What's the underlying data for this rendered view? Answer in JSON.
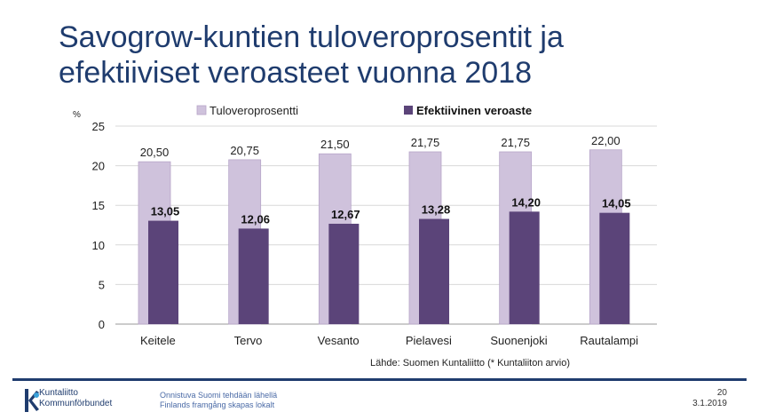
{
  "slide": {
    "title_line1": "Savogrow-kuntien tuloveroprosentit ja",
    "title_line2": "efektiiviset veroasteet vuonna 2018",
    "source": "Lähde: Suomen Kuntaliitto (* Kuntaliiton arvio)",
    "footer": {
      "logo_line1": "Kuntaliitto",
      "logo_line2": "Kommunförbundet",
      "slogan_line1": "Onnistuva Suomi tehdään lähellä",
      "slogan_line2": "Finlands framgång skapas lokalt",
      "page_number": "20",
      "date": "3.1.2019"
    },
    "colors": {
      "title": "#1f3c6e",
      "footer_line": "#1f3c6e"
    }
  },
  "chart_data": {
    "type": "bar",
    "categories": [
      "Keitele",
      "Tervo",
      "Vesanto",
      "Pielavesi",
      "Suonenjoki",
      "Rautalampi"
    ],
    "series": [
      {
        "name": "Tuloveroprosentti",
        "values": [
          20.5,
          20.75,
          21.5,
          21.75,
          21.75,
          22.0
        ],
        "labels": [
          "20,50",
          "20,75",
          "21,50",
          "21,75",
          "21,75",
          "22,00"
        ],
        "color": "#cfc2dc"
      },
      {
        "name": "Efektiivinen veroaste",
        "values": [
          13.05,
          12.06,
          12.67,
          13.28,
          14.2,
          14.05
        ],
        "labels": [
          "13,05",
          "12,06",
          "12,67",
          "13,28",
          "14,20",
          "14,05"
        ],
        "color": "#5b4479"
      }
    ],
    "ylabel": "%",
    "ylim": [
      0,
      25
    ],
    "yticks": [
      0,
      5,
      10,
      15,
      20,
      25
    ],
    "grid": true,
    "legend": "top"
  }
}
